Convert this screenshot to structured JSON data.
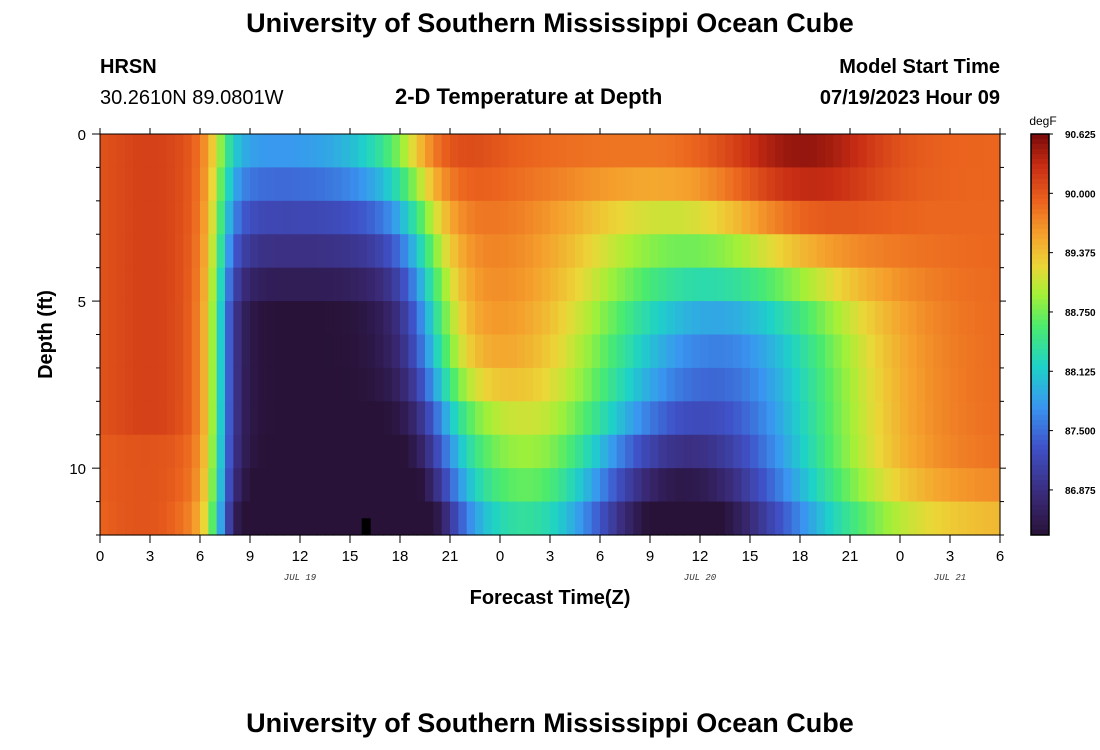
{
  "header": {
    "title": "University of Southern Mississippi Ocean Cube",
    "station": "HRSN",
    "coordinates": "30.2610N  89.0801W",
    "subtitle": "2-D Temperature at Depth",
    "model_start_label": "Model Start Time",
    "model_start_value": "07/19/2023 Hour 09"
  },
  "footer": {
    "title": "University of Southern Mississippi Ocean Cube"
  },
  "colors": {
    "background": "#ffffff",
    "axis": "#000000"
  },
  "chart_data": {
    "type": "heatmap",
    "title": "2-D Temperature at Depth",
    "xlabel": "Forecast Time(Z)",
    "ylabel": "Depth (ft)",
    "x_ticks": [
      "0",
      "3",
      "6",
      "9",
      "12",
      "15",
      "18",
      "21",
      "0",
      "3",
      "6",
      "9",
      "12",
      "15",
      "18",
      "21",
      "0",
      "3",
      "6"
    ],
    "x_range_hours": [
      0,
      54
    ],
    "day_labels": [
      {
        "label": "JUL 19",
        "hour": 12
      },
      {
        "label": "JUL 20",
        "hour": 36
      },
      {
        "label": "JUL 21",
        "hour": 51
      }
    ],
    "y_ticks": [
      "0",
      "5",
      "10"
    ],
    "y_range_ft": [
      0,
      12
    ],
    "depth_levels_ft": [
      0.5,
      1.5,
      2.5,
      3.5,
      4.5,
      5.5,
      6.5,
      7.5,
      8.5,
      9.5,
      10.5,
      11.5
    ],
    "colorbar": {
      "unit": "degF",
      "min": 86.4,
      "max": 90.625,
      "ticks": [
        "90.625",
        "90.000",
        "89.375",
        "88.750",
        "88.125",
        "87.500",
        "86.875"
      ]
    },
    "notes": "Temperature field sampled on hourly forecast columns; deep cool layer (~86.5 degF) between hours 8-20, second cool tongue between hours 31-46 below 5 ft, warm surface (~90.5 degF) near hours 17-21 and 40-46."
  }
}
